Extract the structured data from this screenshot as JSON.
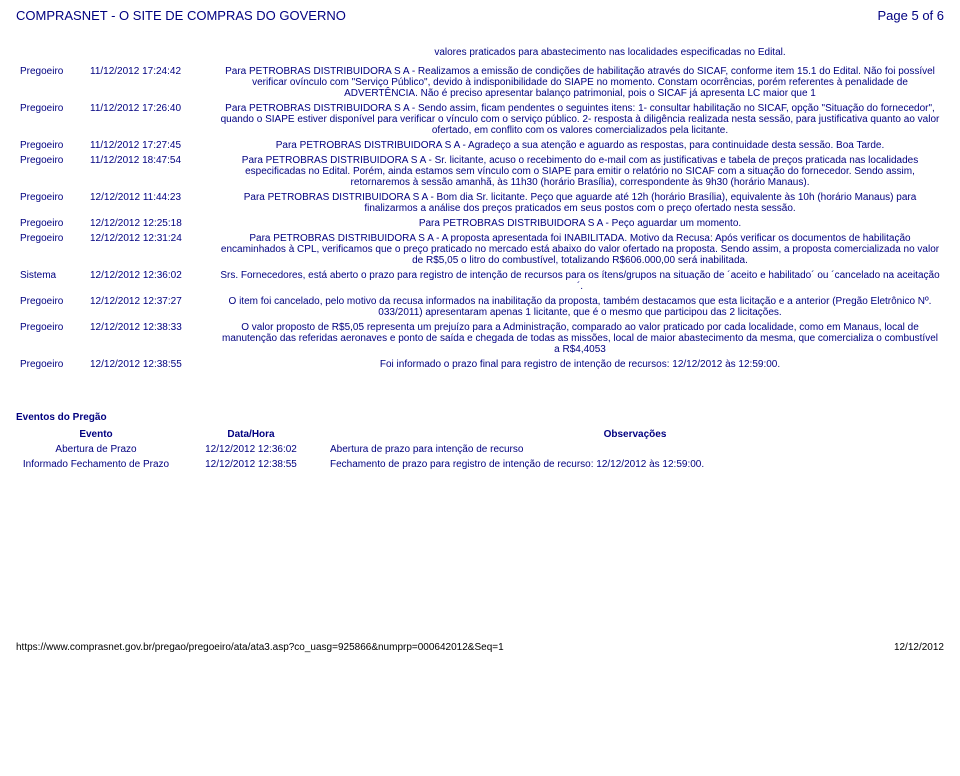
{
  "header": {
    "site_title": "COMPRASNET - O SITE DE COMPRAS DO GOVERNO",
    "page_indicator": "Page 5 of 6"
  },
  "caption": "valores praticados para abastecimento nas localidades especificadas no Edital.",
  "messages": [
    {
      "source": "Pregoeiro",
      "time": "11/12/2012 17:24:42",
      "text": "Para PETROBRAS DISTRIBUIDORA S A - Realizamos a emissão de condições de habilitação através do SICAF, conforme item 15.1 do Edital. Não foi possível verificar ovínculo com \"Serviço Público\", devido à indisponibilidade do SIAPE no momento. Constam ocorrências, porém referentes à penalidade de ADVERTÊNCIA. Não é preciso apresentar balanço patrimonial, pois o SICAF já apresenta LC maior que 1"
    },
    {
      "source": "Pregoeiro",
      "time": "11/12/2012 17:26:40",
      "text": "Para PETROBRAS DISTRIBUIDORA S A - Sendo assim, ficam pendentes o seguintes itens: 1- consultar habilitação no SICAF, opção \"Situação do fornecedor\", quando o SIAPE estiver disponível para verificar o vínculo com o serviço público. 2- resposta à diligência realizada nesta sessão, para justificativa quanto ao valor ofertado, em conflito com os valores comercializados pela licitante."
    },
    {
      "source": "Pregoeiro",
      "time": "11/12/2012 17:27:45",
      "text": "Para PETROBRAS DISTRIBUIDORA S A - Agradeço a sua atenção e aguardo as respostas, para continuidade desta sessão. Boa Tarde."
    },
    {
      "source": "Pregoeiro",
      "time": "11/12/2012 18:47:54",
      "text": "Para PETROBRAS DISTRIBUIDORA S A - Sr. licitante, acuso o recebimento do e-mail com as justificativas e tabela de preços praticada nas localidades especificadas no Edital. Porém, ainda estamos sem vínculo com o SIAPE para emitir o relatório no SICAF com a situação do fornecedor. Sendo assim, retornaremos à sessão amanhã, às 11h30 (horário Brasília), correspondente às 9h30 (horário Manaus)."
    },
    {
      "source": "Pregoeiro",
      "time": "12/12/2012 11:44:23",
      "text": "Para PETROBRAS DISTRIBUIDORA S A - Bom dia Sr. licitante. Peço que aguarde até 12h (horário Brasília), equivalente às 10h (horário Manaus) para finalizarmos a análise dos preços praticados em seus postos com o preço ofertado nesta sessão."
    },
    {
      "source": "Pregoeiro",
      "time": "12/12/2012 12:25:18",
      "text": "Para PETROBRAS DISTRIBUIDORA S A - Peço aguardar um momento."
    },
    {
      "source": "Pregoeiro",
      "time": "12/12/2012 12:31:24",
      "text": "Para PETROBRAS DISTRIBUIDORA S A - A proposta apresentada foi INABILITADA. Motivo da Recusa: Após verificar os documentos de habilitação encaminhados à CPL, verificamos que o preço praticado no mercado está abaixo do valor ofertado na proposta. Sendo assim, a proposta comercializada no valor de R$5,05 o litro do combustível, totalizando R$606.000,00 será inabilitada."
    },
    {
      "source": "Sistema",
      "time": "12/12/2012 12:36:02",
      "text": "Srs. Fornecedores, está aberto o prazo para registro de intenção de recursos para os ítens/grupos na situação de ´aceito e habilitado´ ou ´cancelado na aceitação´."
    },
    {
      "source": "Pregoeiro",
      "time": "12/12/2012 12:37:27",
      "text": "O item foi cancelado, pelo motivo da recusa informados na inabilitação da proposta, também destacamos que esta licitação e a anterior (Pregão Eletrônico Nº. 033/2011) apresentaram apenas 1 licitante, que é o mesmo que participou das 2 licitações."
    },
    {
      "source": "Pregoeiro",
      "time": "12/12/2012 12:38:33",
      "text": "O valor proposto de R$5,05 representa um prejuízo para a Administração, comparado ao valor praticado por cada localidade, como em Manaus, local de manutenção das referidas aeronaves e ponto de saída e chegada de todas as missões, local de maior abastecimento da mesma, que comercializa o combustível a R$4,4053"
    },
    {
      "source": "Pregoeiro",
      "time": "12/12/2012 12:38:55",
      "text": "Foi informado o prazo final para registro de intenção de recursos: 12/12/2012 às 12:59:00."
    }
  ],
  "events": {
    "section_title": "Eventos do Pregão",
    "headers": {
      "event": "Evento",
      "datetime": "Data/Hora",
      "obs": "Observações"
    },
    "rows": [
      {
        "event": "Abertura de Prazo",
        "datetime": "12/12/2012 12:36:02",
        "obs": "Abertura de prazo para intenção de recurso"
      },
      {
        "event": "Informado Fechamento de Prazo",
        "datetime": "12/12/2012 12:38:55",
        "obs": "Fechamento de prazo para registro de intenção de recurso: 12/12/2012 às 12:59:00."
      }
    ]
  },
  "footer": {
    "url": "https://www.comprasnet.gov.br/pregao/pregoeiro/ata/ata3.asp?co_uasg=925866&numprp=000642012&Seq=1",
    "date": "12/12/2012"
  }
}
